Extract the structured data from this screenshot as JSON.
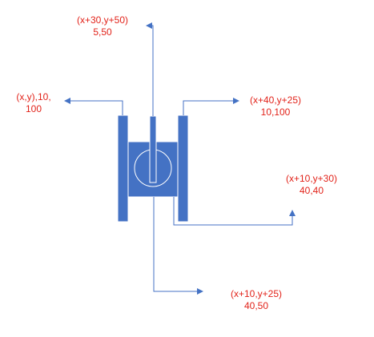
{
  "labels": {
    "top": {
      "line1": "(x+30,y+50)",
      "line2": "5,50"
    },
    "left": {
      "line1": "(x,y),10,",
      "line2": "100"
    },
    "right": {
      "line1": "(x+40,y+25)",
      "line2": "10,100"
    },
    "right_lower": {
      "line1": "(x+10,y+30)",
      "line2": "40,40"
    },
    "bottom": {
      "line1": "(x+10,y+25)",
      "line2": "40,50"
    }
  },
  "colors": {
    "shape_fill": "#4472c4",
    "shape_stroke": "#ffffff",
    "leader_line": "#4472c4",
    "label_text": "#e2231a"
  }
}
